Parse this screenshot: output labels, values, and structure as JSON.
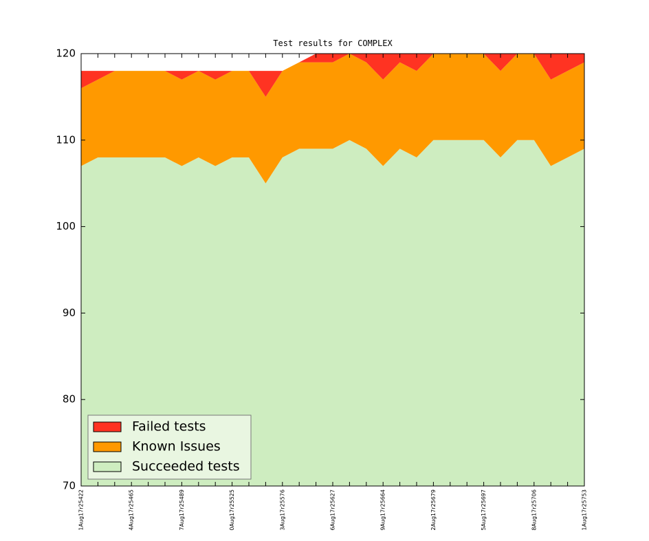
{
  "chart_data": {
    "type": "stacked-area",
    "title": "Test results for COMPLEX",
    "categories": [
      "1Aug17r25422",
      null,
      null,
      "4Aug17r25465",
      null,
      null,
      "7Aug17r25489",
      null,
      null,
      "0Aug17r25525",
      null,
      null,
      "3Aug17r25576",
      null,
      null,
      "6Aug17r25627",
      null,
      null,
      "9Aug17r25664",
      null,
      null,
      "2Aug17r25679",
      null,
      null,
      "5Aug17r25697",
      null,
      null,
      "8Aug17r25706",
      null,
      null,
      "1Aug17r25753"
    ],
    "series": [
      {
        "name": "Failed tests",
        "color": "#ff3322",
        "values": [
          2,
          1,
          0,
          0,
          0,
          0,
          1,
          0,
          1,
          0,
          0,
          3,
          0,
          0,
          1,
          1,
          0,
          1,
          3,
          1,
          2,
          0,
          0,
          0,
          0,
          2,
          0,
          0,
          3,
          2,
          1
        ]
      },
      {
        "name": "Known Issues",
        "color": "#ff9900",
        "values": [
          9,
          9,
          10,
          10,
          10,
          10,
          10,
          10,
          10,
          10,
          10,
          10,
          10,
          10,
          10,
          10,
          10,
          10,
          10,
          10,
          10,
          10,
          10,
          10,
          10,
          10,
          10,
          10,
          10,
          10,
          10
        ]
      },
      {
        "name": "Succeeded tests",
        "color": "#ceedc0",
        "values": [
          107,
          108,
          108,
          108,
          108,
          108,
          107,
          108,
          107,
          108,
          108,
          105,
          108,
          109,
          109,
          109,
          110,
          109,
          107,
          109,
          108,
          110,
          110,
          110,
          110,
          108,
          110,
          110,
          107,
          108,
          109
        ]
      }
    ],
    "ylim": [
      70,
      120
    ],
    "yticks": [
      70,
      80,
      90,
      100,
      110,
      120
    ],
    "legend": "lower left"
  }
}
